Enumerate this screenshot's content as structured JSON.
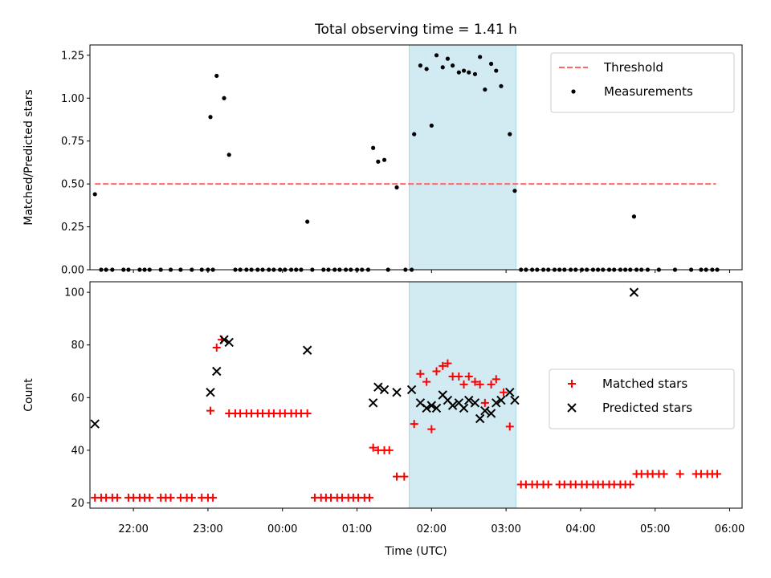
{
  "title": "Total observing time = 1.41 h",
  "chart_data": [
    {
      "type": "scatter",
      "ylabel": "Matched/Predicted stars",
      "ylim": [
        0,
        1.31
      ],
      "yticks": [
        0,
        0.25,
        0.5,
        0.75,
        1.0,
        1.25
      ],
      "ytick_labels": [
        "0.00",
        "0.25",
        "0.50",
        "0.75",
        "1.00",
        "1.25"
      ],
      "xlim": [
        "21:25",
        "06:10"
      ],
      "xticks": [
        "22:00",
        "23:00",
        "00:00",
        "01:00",
        "02:00",
        "03:00",
        "04:00",
        "05:00",
        "06:00"
      ],
      "legend_position": "upper-right",
      "shaded_interval": {
        "start": "01:42",
        "end": "03:08",
        "color": "#add8e6"
      },
      "threshold": {
        "name": "Threshold",
        "value": 0.5,
        "x": [
          "21:29",
          "05:49"
        ],
        "color": "#ff6666",
        "style": "dashed"
      },
      "series": [
        {
          "name": "Measurements",
          "color": "#000000",
          "marker": "dot",
          "points": [
            [
              "21:29",
              0.44
            ],
            [
              "21:34",
              0.0
            ],
            [
              "21:38",
              0.0
            ],
            [
              "21:43",
              0.0
            ],
            [
              "21:52",
              0.0
            ],
            [
              "21:56",
              0.0
            ],
            [
              "22:05",
              0.0
            ],
            [
              "22:09",
              0.0
            ],
            [
              "22:13",
              0.0
            ],
            [
              "22:22",
              0.0
            ],
            [
              "22:30",
              0.0
            ],
            [
              "22:38",
              0.0
            ],
            [
              "22:47",
              0.0
            ],
            [
              "22:55",
              0.0
            ],
            [
              "23:00",
              0.0
            ],
            [
              "23:04",
              0.0
            ],
            [
              "23:02",
              0.89
            ],
            [
              "23:07",
              1.13
            ],
            [
              "23:13",
              1.0
            ],
            [
              "23:17",
              0.67
            ],
            [
              "23:22",
              0.0
            ],
            [
              "23:26",
              0.0
            ],
            [
              "23:31",
              0.0
            ],
            [
              "23:35",
              0.0
            ],
            [
              "23:40",
              0.0
            ],
            [
              "23:44",
              0.0
            ],
            [
              "23:49",
              0.0
            ],
            [
              "23:53",
              0.0
            ],
            [
              "23:58",
              0.0
            ],
            [
              "00:02",
              0.0
            ],
            [
              "00:07",
              0.0
            ],
            [
              "00:11",
              0.0
            ],
            [
              "00:15",
              0.0
            ],
            [
              "00:20",
              0.28
            ],
            [
              "00:24",
              0.0
            ],
            [
              "00:33",
              0.0
            ],
            [
              "00:37",
              0.0
            ],
            [
              "00:42",
              0.0
            ],
            [
              "00:46",
              0.0
            ],
            [
              "00:51",
              0.0
            ],
            [
              "00:55",
              0.0
            ],
            [
              "01:00",
              0.0
            ],
            [
              "01:04",
              0.0
            ],
            [
              "01:09",
              0.0
            ],
            [
              "01:13",
              0.71
            ],
            [
              "01:17",
              0.63
            ],
            [
              "01:22",
              0.64
            ],
            [
              "01:25",
              0.0
            ],
            [
              "01:32",
              0.48
            ],
            [
              "01:39",
              0.0
            ],
            [
              "01:44",
              0.0
            ],
            [
              "01:46",
              0.79
            ],
            [
              "01:51",
              1.19
            ],
            [
              "01:56",
              1.17
            ],
            [
              "02:00",
              0.84
            ],
            [
              "02:04",
              1.25
            ],
            [
              "02:09",
              1.18
            ],
            [
              "02:13",
              1.23
            ],
            [
              "02:17",
              1.19
            ],
            [
              "02:22",
              1.15
            ],
            [
              "02:26",
              1.16
            ],
            [
              "02:30",
              1.15
            ],
            [
              "02:35",
              1.14
            ],
            [
              "02:39",
              1.24
            ],
            [
              "02:43",
              1.05
            ],
            [
              "02:48",
              1.2
            ],
            [
              "02:52",
              1.16
            ],
            [
              "02:56",
              1.07
            ],
            [
              "03:03",
              0.79
            ],
            [
              "03:07",
              0.46
            ],
            [
              "03:12",
              0.0
            ],
            [
              "03:16",
              0.0
            ],
            [
              "03:21",
              0.0
            ],
            [
              "03:25",
              0.0
            ],
            [
              "03:30",
              0.0
            ],
            [
              "03:34",
              0.0
            ],
            [
              "03:39",
              0.0
            ],
            [
              "03:43",
              0.0
            ],
            [
              "03:47",
              0.0
            ],
            [
              "03:52",
              0.0
            ],
            [
              "03:56",
              0.0
            ],
            [
              "04:01",
              0.0
            ],
            [
              "04:05",
              0.0
            ],
            [
              "04:10",
              0.0
            ],
            [
              "04:14",
              0.0
            ],
            [
              "04:18",
              0.0
            ],
            [
              "04:23",
              0.0
            ],
            [
              "04:27",
              0.0
            ],
            [
              "04:32",
              0.0
            ],
            [
              "04:36",
              0.0
            ],
            [
              "04:40",
              0.0
            ],
            [
              "04:45",
              0.0
            ],
            [
              "04:43",
              0.31
            ],
            [
              "04:49",
              0.0
            ],
            [
              "04:54",
              0.0
            ],
            [
              "05:03",
              0.0
            ],
            [
              "05:16",
              0.0
            ],
            [
              "05:29",
              0.0
            ],
            [
              "05:37",
              0.0
            ],
            [
              "05:41",
              0.0
            ],
            [
              "05:46",
              0.0
            ],
            [
              "05:50",
              0.0
            ]
          ]
        }
      ]
    },
    {
      "type": "scatter",
      "xlabel": "Time (UTC)",
      "ylabel": "Count",
      "ylim": [
        18,
        104
      ],
      "yticks": [
        20,
        40,
        60,
        80,
        100
      ],
      "ytick_labels": [
        "20",
        "40",
        "60",
        "80",
        "100"
      ],
      "xlim": [
        "21:25",
        "06:10"
      ],
      "xticks": [
        "22:00",
        "23:00",
        "00:00",
        "01:00",
        "02:00",
        "03:00",
        "04:00",
        "05:00",
        "06:00"
      ],
      "xtick_labels": [
        "22:00",
        "23:00",
        "00:00",
        "01:00",
        "02:00",
        "03:00",
        "04:00",
        "05:00",
        "06:00"
      ],
      "legend_position": "center-right",
      "shaded_interval": {
        "start": "01:42",
        "end": "03:08",
        "color": "#add8e6"
      },
      "series": [
        {
          "name": "Matched stars",
          "color": "#ff0000",
          "marker": "plus",
          "points": [
            [
              "21:29",
              22
            ],
            [
              "21:34",
              22
            ],
            [
              "21:38",
              22
            ],
            [
              "21:43",
              22
            ],
            [
              "21:47",
              22
            ],
            [
              "21:56",
              22
            ],
            [
              "22:00",
              22
            ],
            [
              "22:05",
              22
            ],
            [
              "22:09",
              22
            ],
            [
              "22:13",
              22
            ],
            [
              "22:22",
              22
            ],
            [
              "22:26",
              22
            ],
            [
              "22:30",
              22
            ],
            [
              "22:38",
              22
            ],
            [
              "22:43",
              22
            ],
            [
              "22:47",
              22
            ],
            [
              "22:55",
              22
            ],
            [
              "23:00",
              22
            ],
            [
              "23:04",
              22
            ],
            [
              "23:02",
              55
            ],
            [
              "23:07",
              79
            ],
            [
              "23:11",
              82
            ],
            [
              "23:17",
              54
            ],
            [
              "23:22",
              54
            ],
            [
              "23:26",
              54
            ],
            [
              "23:31",
              54
            ],
            [
              "23:35",
              54
            ],
            [
              "23:40",
              54
            ],
            [
              "23:44",
              54
            ],
            [
              "23:49",
              54
            ],
            [
              "23:53",
              54
            ],
            [
              "23:58",
              54
            ],
            [
              "00:02",
              54
            ],
            [
              "00:07",
              54
            ],
            [
              "00:11",
              54
            ],
            [
              "00:15",
              54
            ],
            [
              "00:20",
              54
            ],
            [
              "00:26",
              22
            ],
            [
              "00:31",
              22
            ],
            [
              "00:35",
              22
            ],
            [
              "00:39",
              22
            ],
            [
              "00:44",
              22
            ],
            [
              "00:48",
              22
            ],
            [
              "00:53",
              22
            ],
            [
              "00:57",
              22
            ],
            [
              "01:01",
              22
            ],
            [
              "01:06",
              22
            ],
            [
              "01:10",
              22
            ],
            [
              "01:13",
              41
            ],
            [
              "01:17",
              40
            ],
            [
              "01:22",
              40
            ],
            [
              "01:26",
              40
            ],
            [
              "01:32",
              30
            ],
            [
              "01:38",
              30
            ],
            [
              "01:46",
              50
            ],
            [
              "01:51",
              69
            ],
            [
              "01:56",
              66
            ],
            [
              "02:00",
              48
            ],
            [
              "02:04",
              70
            ],
            [
              "02:09",
              72
            ],
            [
              "02:13",
              73
            ],
            [
              "02:17",
              68
            ],
            [
              "02:22",
              68
            ],
            [
              "02:26",
              65
            ],
            [
              "02:30",
              68
            ],
            [
              "02:35",
              66
            ],
            [
              "02:39",
              65
            ],
            [
              "02:43",
              58
            ],
            [
              "02:48",
              65
            ],
            [
              "02:52",
              67
            ],
            [
              "02:58",
              62
            ],
            [
              "03:03",
              49
            ],
            [
              "03:12",
              27
            ],
            [
              "03:16",
              27
            ],
            [
              "03:21",
              27
            ],
            [
              "03:25",
              27
            ],
            [
              "03:30",
              27
            ],
            [
              "03:34",
              27
            ],
            [
              "03:43",
              27
            ],
            [
              "03:47",
              27
            ],
            [
              "03:52",
              27
            ],
            [
              "03:56",
              27
            ],
            [
              "04:01",
              27
            ],
            [
              "04:05",
              27
            ],
            [
              "04:10",
              27
            ],
            [
              "04:14",
              27
            ],
            [
              "04:18",
              27
            ],
            [
              "04:23",
              27
            ],
            [
              "04:27",
              27
            ],
            [
              "04:32",
              27
            ],
            [
              "04:36",
              27
            ],
            [
              "04:40",
              27
            ],
            [
              "04:45",
              31
            ],
            [
              "04:49",
              31
            ],
            [
              "04:54",
              31
            ],
            [
              "04:58",
              31
            ],
            [
              "05:03",
              31
            ],
            [
              "05:07",
              31
            ],
            [
              "05:20",
              31
            ],
            [
              "05:33",
              31
            ],
            [
              "05:37",
              31
            ],
            [
              "05:42",
              31
            ],
            [
              "05:46",
              31
            ],
            [
              "05:50",
              31
            ]
          ]
        },
        {
          "name": "Predicted stars",
          "color": "#000000",
          "marker": "x",
          "points": [
            [
              "21:29",
              50
            ],
            [
              "23:02",
              62
            ],
            [
              "23:07",
              70
            ],
            [
              "23:13",
              82
            ],
            [
              "23:17",
              81
            ],
            [
              "00:20",
              78
            ],
            [
              "01:13",
              58
            ],
            [
              "01:17",
              64
            ],
            [
              "01:22",
              63
            ],
            [
              "01:32",
              62
            ],
            [
              "01:44",
              63
            ],
            [
              "01:51",
              58
            ],
            [
              "01:56",
              56
            ],
            [
              "02:00",
              57
            ],
            [
              "02:04",
              56
            ],
            [
              "02:09",
              61
            ],
            [
              "02:13",
              59
            ],
            [
              "02:17",
              57
            ],
            [
              "02:22",
              58
            ],
            [
              "02:26",
              56
            ],
            [
              "02:30",
              59
            ],
            [
              "02:35",
              58
            ],
            [
              "02:39",
              52
            ],
            [
              "02:43",
              55
            ],
            [
              "02:48",
              54
            ],
            [
              "02:52",
              58
            ],
            [
              "02:56",
              59
            ],
            [
              "03:03",
              62
            ],
            [
              "03:07",
              59
            ],
            [
              "04:43",
              100
            ]
          ]
        }
      ]
    }
  ]
}
